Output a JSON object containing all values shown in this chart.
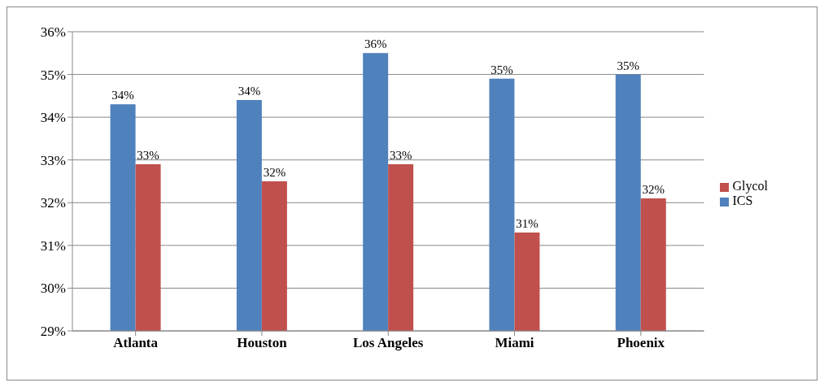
{
  "chart_data": {
    "type": "bar",
    "categories": [
      "Atlanta",
      "Houston",
      "Los Angeles",
      "Miami",
      "Phoenix"
    ],
    "series": [
      {
        "name": "ICS",
        "color": "#4f81bd",
        "values": [
          34.3,
          34.4,
          35.5,
          34.9,
          35.0
        ],
        "value_labels": [
          "34%",
          "34%",
          "36%",
          "35%",
          "35%"
        ]
      },
      {
        "name": "Glycol",
        "color": "#c0504d",
        "values": [
          32.9,
          32.5,
          32.9,
          31.3,
          32.1
        ],
        "value_labels": [
          "33%",
          "32%",
          "33%",
          "31%",
          "32%"
        ]
      }
    ],
    "ylim": [
      29,
      36
    ],
    "yticks": [
      {
        "value": 29,
        "label": "29%"
      },
      {
        "value": 30,
        "label": "30%"
      },
      {
        "value": 31,
        "label": "31%"
      },
      {
        "value": 32,
        "label": "32%"
      },
      {
        "value": 33,
        "label": "33%"
      },
      {
        "value": 34,
        "label": "34%"
      },
      {
        "value": 35,
        "label": "35%"
      },
      {
        "value": 36,
        "label": "36%"
      }
    ],
    "grid": "y",
    "legend": "right"
  }
}
